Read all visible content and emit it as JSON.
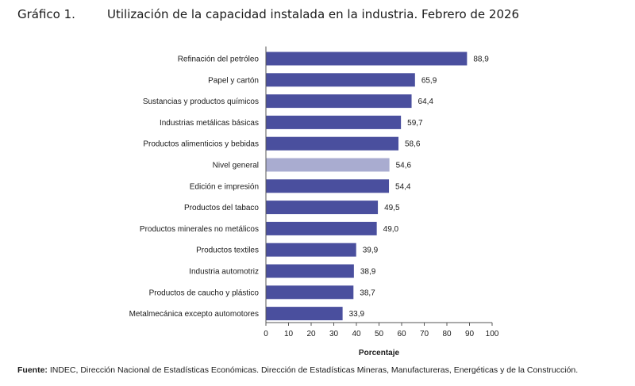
{
  "header": {
    "figure_label": "Gráfico 1.",
    "title": "Utilización de la capacidad instalada en la industria. Febrero de 2026"
  },
  "footer": {
    "source_label": "Fuente:",
    "source_text": "INDEC, Dirección Nacional de Estadísticas Económicas. Dirección de Estadísticas Mineras, Manufactureras, Energéticas y de la Construcción."
  },
  "colors": {
    "bar": "#4a4f9e",
    "highlight": "#a9acd0",
    "axis": "#555555"
  },
  "chart_data": {
    "type": "bar",
    "orientation": "horizontal",
    "categories": [
      "Refinación del petróleo",
      "Papel y cartón",
      "Sustancias y productos químicos",
      "Industrias metálicas básicas",
      "Productos alimenticios y bebidas",
      "Nivel general",
      "Edición e impresión",
      "Productos del tabaco",
      "Productos minerales no metálicos",
      "Productos textiles",
      "Industria automotriz",
      "Productos de caucho y plástico",
      "Metalmecánica excepto automotores"
    ],
    "values": [
      88.9,
      65.9,
      64.4,
      59.7,
      58.6,
      54.6,
      54.4,
      49.5,
      49.0,
      39.9,
      38.9,
      38.7,
      33.9
    ],
    "value_labels": [
      "88,9",
      "65,9",
      "64,4",
      "59,7",
      "58,6",
      "54,6",
      "54,4",
      "49,5",
      "49,0",
      "39,9",
      "38,9",
      "38,7",
      "33,9"
    ],
    "highlighted_category": "Nivel general",
    "xlabel": "Porcentaje",
    "ylabel": "",
    "xlim": [
      0,
      100
    ],
    "xticks": [
      0,
      10,
      20,
      30,
      40,
      50,
      60,
      70,
      80,
      90,
      100
    ],
    "grid": false
  }
}
